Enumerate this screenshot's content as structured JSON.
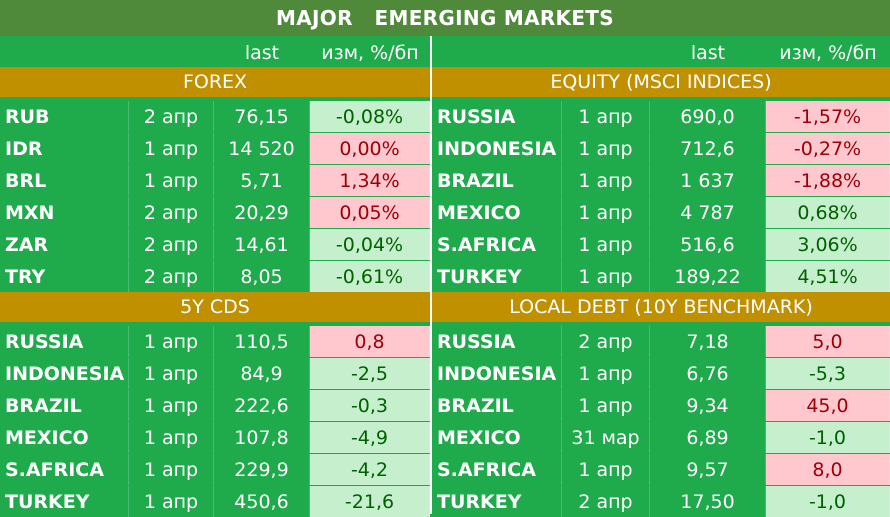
{
  "title": "MAJOR   EMERGING MARKETS",
  "header": {
    "left": {
      "last": "last",
      "chg": "изм, %/бп"
    },
    "right": {
      "last": "last",
      "chg": "изм, %/бп"
    }
  },
  "sections": {
    "forex": {
      "title": "FOREX",
      "rows": [
        {
          "name": "RUB",
          "date": "2 апр",
          "last": "76,15",
          "chg": "-0,08%",
          "tone": "pos"
        },
        {
          "name": "IDR",
          "date": "1 апр",
          "last": "14 520",
          "chg": "0,00%",
          "tone": "neg"
        },
        {
          "name": "BRL",
          "date": "1 апр",
          "last": "5,71",
          "chg": "1,34%",
          "tone": "neg"
        },
        {
          "name": "MXN",
          "date": "2 апр",
          "last": "20,29",
          "chg": "0,05%",
          "tone": "neg"
        },
        {
          "name": "ZAR",
          "date": "2 апр",
          "last": "14,61",
          "chg": "-0,04%",
          "tone": "pos"
        },
        {
          "name": "TRY",
          "date": "2 апр",
          "last": "8,05",
          "chg": "-0,61%",
          "tone": "pos"
        }
      ]
    },
    "equity": {
      "title": "EQUITY (MSCI INDICES)",
      "rows": [
        {
          "name": "RUSSIA",
          "date": "1 апр",
          "last": "690,0",
          "chg": "-1,57%",
          "tone": "neg"
        },
        {
          "name": "INDONESIA",
          "date": "1 апр",
          "last": "712,6",
          "chg": "-0,27%",
          "tone": "neg"
        },
        {
          "name": "BRAZIL",
          "date": "1 апр",
          "last": "1 637",
          "chg": "-1,88%",
          "tone": "neg"
        },
        {
          "name": "MEXICO",
          "date": "1 апр",
          "last": "4 787",
          "chg": "0,68%",
          "tone": "pos"
        },
        {
          "name": "S.AFRICA",
          "date": "1 апр",
          "last": "516,6",
          "chg": "3,06%",
          "tone": "pos"
        },
        {
          "name": "TURKEY",
          "date": "1 апр",
          "last": "189,22",
          "chg": "4,51%",
          "tone": "pos"
        }
      ]
    },
    "cds": {
      "title": "5Y CDS",
      "rows": [
        {
          "name": "RUSSIA",
          "date": "1 апр",
          "last": "110,5",
          "chg": "0,8",
          "tone": "neg"
        },
        {
          "name": "INDONESIA",
          "date": "1 апр",
          "last": "84,9",
          "chg": "-2,5",
          "tone": "pos"
        },
        {
          "name": "BRAZIL",
          "date": "1 апр",
          "last": "222,6",
          "chg": "-0,3",
          "tone": "pos"
        },
        {
          "name": "MEXICO",
          "date": "1 апр",
          "last": "107,8",
          "chg": "-4,9",
          "tone": "pos"
        },
        {
          "name": "S.AFRICA",
          "date": "1 апр",
          "last": "229,9",
          "chg": "-4,2",
          "tone": "pos"
        },
        {
          "name": "TURKEY",
          "date": "1 апр",
          "last": "450,6",
          "chg": "-21,6",
          "tone": "pos"
        }
      ]
    },
    "debt": {
      "title": "LOCAL DEBT (10Y BENCHMARK)",
      "rows": [
        {
          "name": "RUSSIA",
          "date": "2 апр",
          "last": "7,18",
          "chg": "5,0",
          "tone": "neg"
        },
        {
          "name": "INDONESIA",
          "date": "1 апр",
          "last": "6,76",
          "chg": "-5,3",
          "tone": "pos"
        },
        {
          "name": "BRAZIL",
          "date": "1 апр",
          "last": "9,34",
          "chg": "45,0",
          "tone": "neg"
        },
        {
          "name": "MEXICO",
          "date": "31 мар",
          "last": "6,89",
          "chg": "-1,0",
          "tone": "pos"
        },
        {
          "name": "S.AFRICA",
          "date": "1 апр",
          "last": "9,57",
          "chg": "8,0",
          "tone": "neg"
        },
        {
          "name": "TURKEY",
          "date": "2 апр",
          "last": "17,50",
          "chg": "-1,0",
          "tone": "pos"
        }
      ]
    }
  }
}
